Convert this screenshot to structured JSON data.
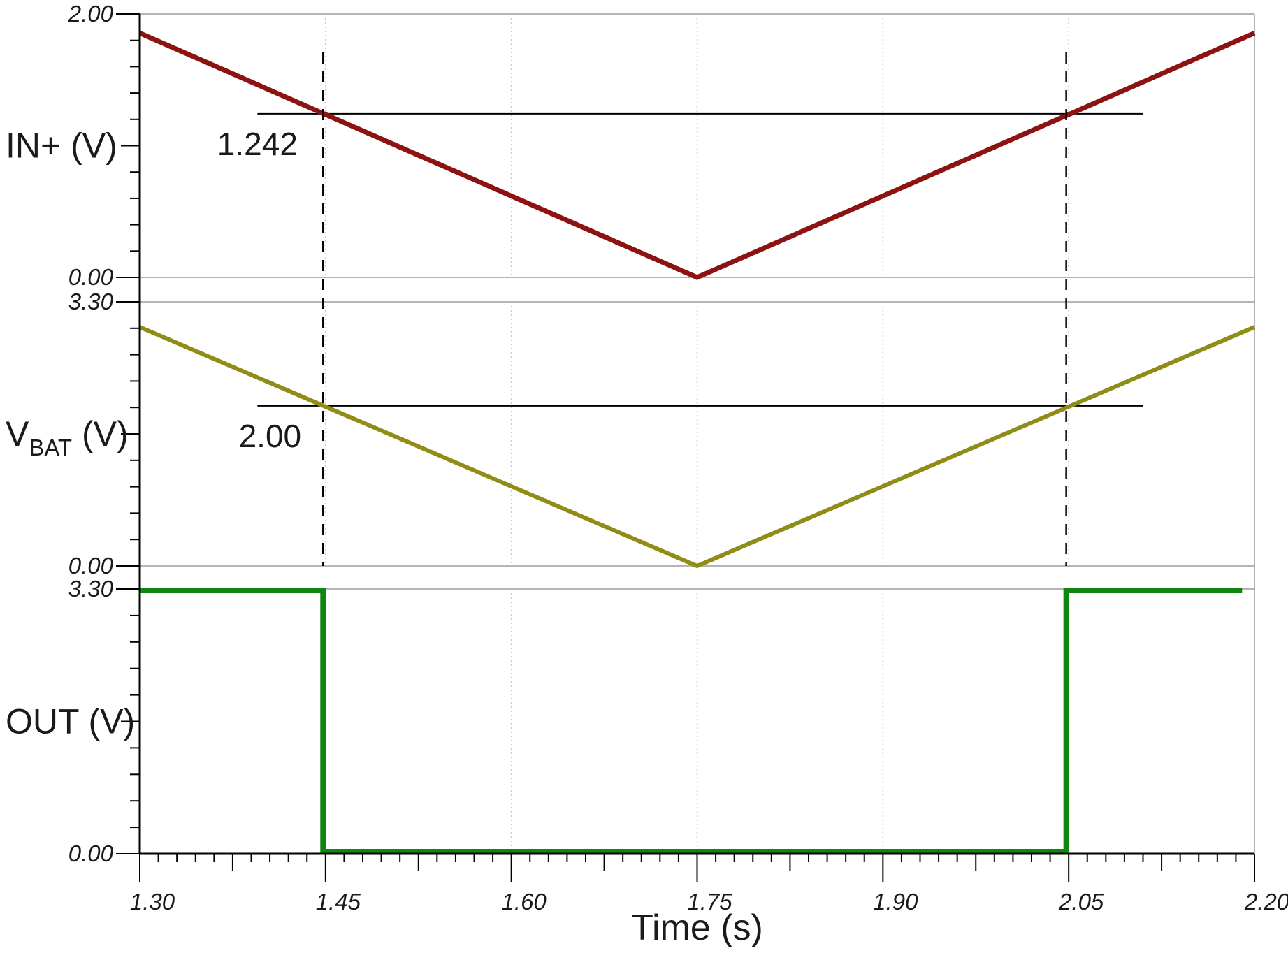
{
  "chart_data": {
    "type": "line",
    "title": "",
    "xlabel": "Time (s)",
    "xmin": 1.3,
    "xmax": 2.2,
    "x_major_ticks": [
      1.3,
      1.45,
      1.6,
      1.75,
      1.9,
      2.05,
      2.2
    ],
    "x_tick_labels": [
      "1.30",
      "1.45",
      "1.60",
      "1.75",
      "1.90",
      "2.05",
      "2.20"
    ],
    "x_minor_step": 0.015,
    "grid": "vertical dotted gridlines at major ticks, gray panel frame lines",
    "legend_position": "none",
    "cursors": {
      "style": "black dashed vertical, spans top two panels",
      "x_values": [
        1.448,
        2.048
      ]
    },
    "colors": {
      "in_trace": "#8D1313",
      "vbat_trace": "#8F8C18",
      "out_trace": "#0F870F",
      "threshold_line": "#000000",
      "cursor": "#000000",
      "grid": "#C9C9C9",
      "frame": "#B5B5B5",
      "axis": "#000000"
    },
    "panels": [
      {
        "name": "IN+",
        "unit": "V",
        "label_main": "IN+ (V)",
        "label_sub": "",
        "label_rest": "",
        "ymin": 0.0,
        "ymax": 2.0,
        "ymin_label": "0.00",
        "ymax_label": "2.00",
        "color": "#8D1313",
        "series": {
          "name": "IN+",
          "points": [
            [
              1.3,
              1.855
            ],
            [
              1.75,
              0.0
            ],
            [
              2.2,
              1.855
            ]
          ]
        },
        "threshold": {
          "value": 1.242,
          "label": "1.242",
          "x_from": 1.395,
          "x_to": 2.11
        }
      },
      {
        "name": "VBAT",
        "unit": "V",
        "label_main": "V",
        "label_sub": "BAT",
        "label_rest": " (V)",
        "ymin": 0.0,
        "ymax": 3.3,
        "ymin_label": "0.00",
        "ymax_label": "3.30",
        "color": "#8F8C18",
        "series": {
          "name": "VBAT",
          "points": [
            [
              1.3,
              2.985
            ],
            [
              1.75,
              0.0
            ],
            [
              2.2,
              2.985
            ]
          ]
        },
        "threshold": {
          "value": 2.0,
          "label": "2.00",
          "x_from": 1.395,
          "x_to": 2.11
        }
      },
      {
        "name": "OUT",
        "unit": "V",
        "label_main": "OUT (V)",
        "label_sub": "",
        "label_rest": "",
        "ymin": 0.0,
        "ymax": 3.3,
        "ymin_label": "0.00",
        "ymax_label": "3.30",
        "color": "#0F870F",
        "series": {
          "name": "OUT",
          "points": [
            [
              1.3,
              3.3
            ],
            [
              1.448,
              3.3
            ],
            [
              1.448,
              0.0
            ],
            [
              2.048,
              0.0
            ],
            [
              2.048,
              3.3
            ],
            [
              2.19,
              3.3
            ]
          ]
        },
        "threshold": null
      }
    ]
  }
}
